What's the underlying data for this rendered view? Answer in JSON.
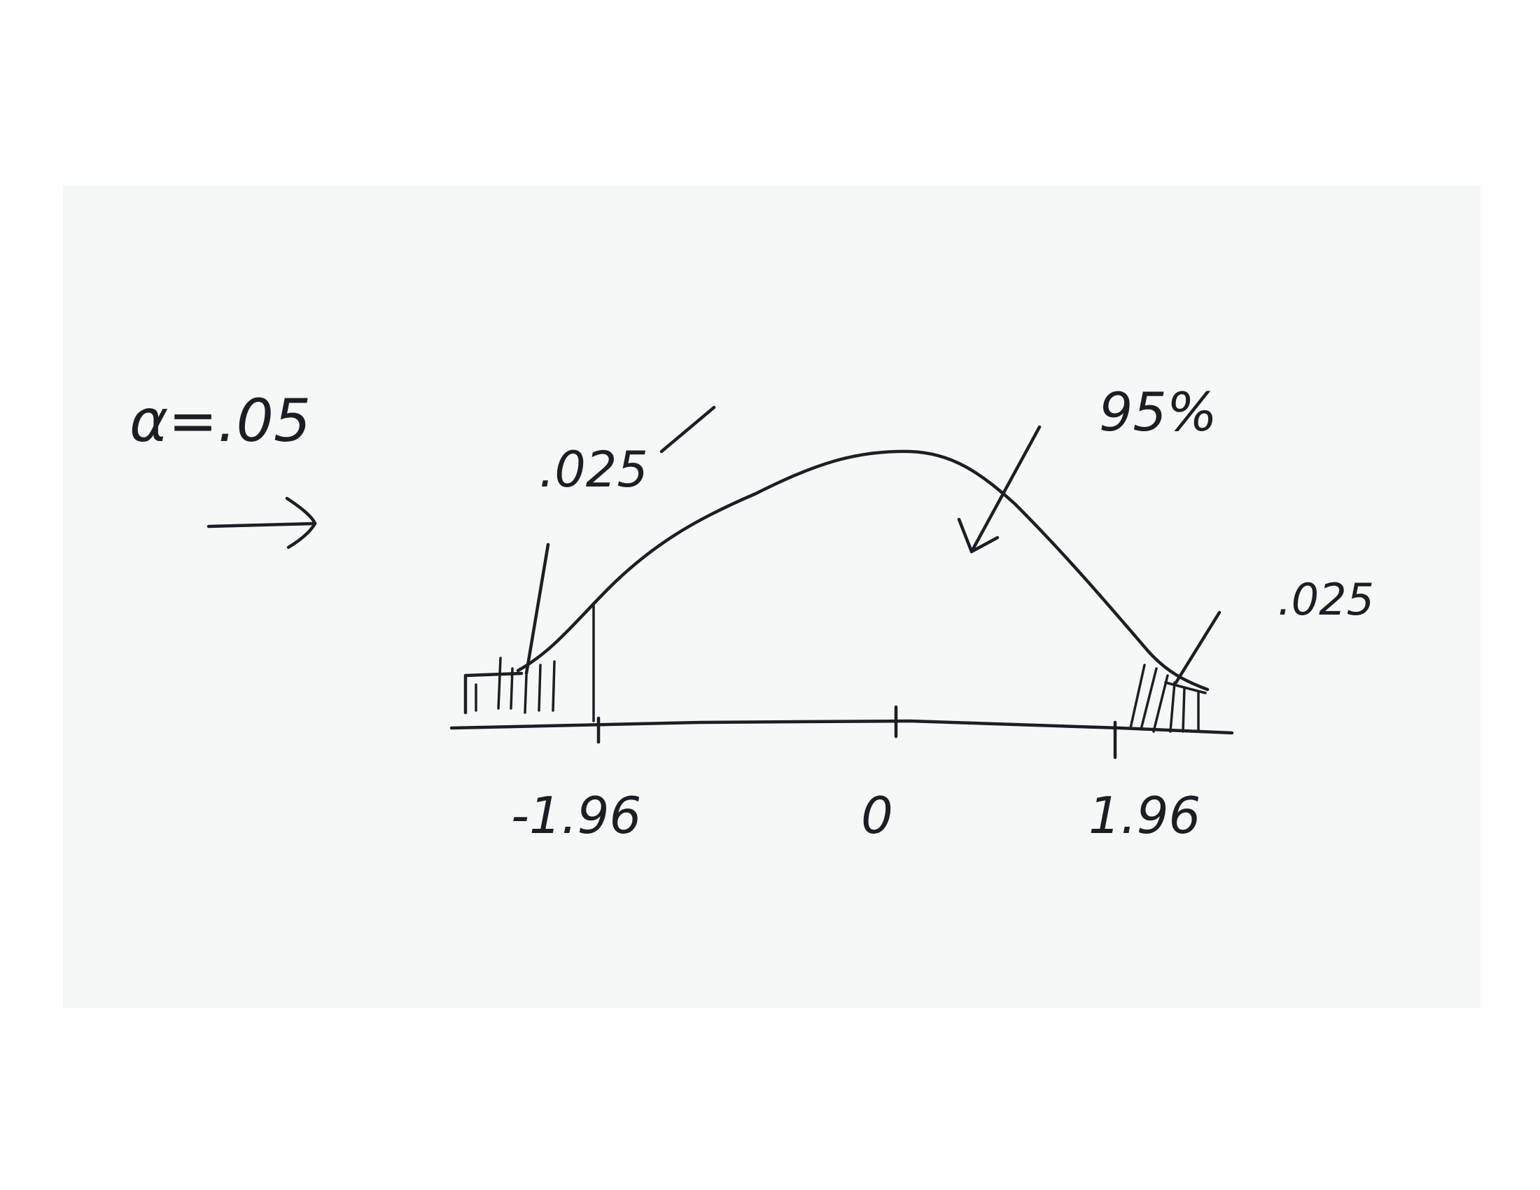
{
  "alpha_label": "α=.05",
  "arrow_icon": "right-arrow-icon",
  "curve": {
    "type": "normal-distribution",
    "tail_label_left": ".025",
    "tail_label_right": ".025",
    "center_label": "95%"
  },
  "axis": {
    "ticks": [
      "-1.96",
      "0",
      "1.96"
    ]
  },
  "colors": {
    "paper": "#f6f7f7",
    "ink": "#1d1e22"
  }
}
